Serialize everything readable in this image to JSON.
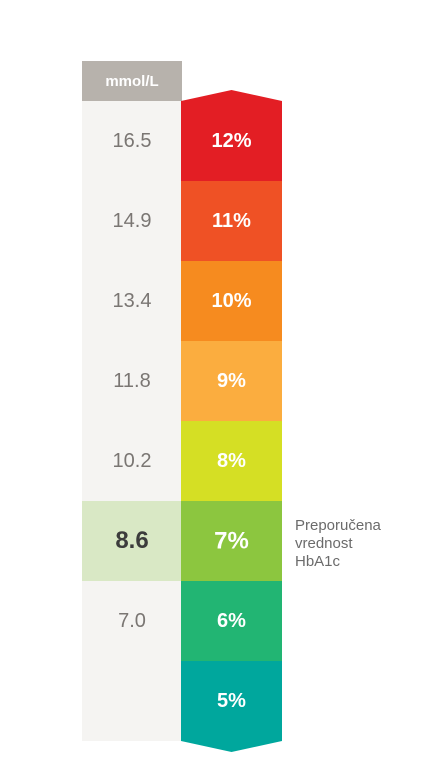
{
  "chart_data": {
    "type": "table",
    "unit_header": "mmol/L",
    "rows": [
      {
        "mmol": "16.5",
        "hba1c": "12%",
        "color": "#e31e24"
      },
      {
        "mmol": "14.9",
        "hba1c": "11%",
        "color": "#ef5125"
      },
      {
        "mmol": "13.4",
        "hba1c": "10%",
        "color": "#f68b1f"
      },
      {
        "mmol": "11.8",
        "hba1c": "9%",
        "color": "#fbad3f"
      },
      {
        "mmol": "10.2",
        "hba1c": "8%",
        "color": "#d5df24"
      },
      {
        "mmol": "8.6",
        "hba1c": "7%",
        "color": "#8cc63f",
        "highlight": true
      },
      {
        "mmol": "7.0",
        "hba1c": "6%",
        "color": "#22b573"
      },
      {
        "mmol": "",
        "hba1c": "5%",
        "color": "#00a79d"
      }
    ],
    "annotation": {
      "lines": [
        "Preporučena",
        "vrednost",
        "HbA1c"
      ]
    }
  }
}
